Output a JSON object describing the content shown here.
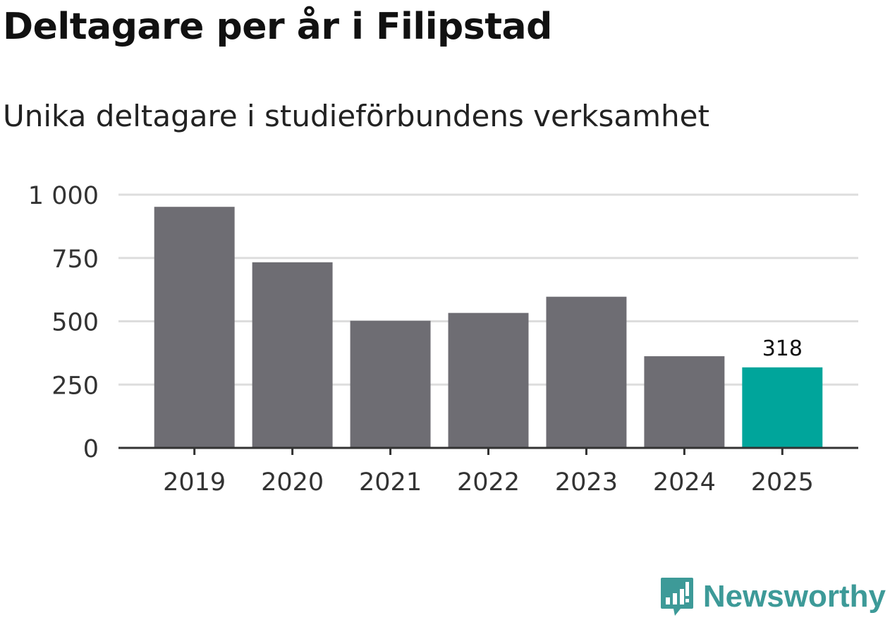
{
  "chart_data": {
    "type": "bar",
    "title": "Deltagare per år i Filipstad",
    "subtitle": "Unika deltagare i studieförbundens verksamhet",
    "categories": [
      "2019",
      "2020",
      "2021",
      "2022",
      "2023",
      "2024",
      "2025"
    ],
    "values": [
      952,
      733,
      502,
      533,
      597,
      362,
      318
    ],
    "ylim": [
      0,
      1000
    ],
    "yticks": [
      0,
      250,
      500,
      750,
      1000
    ],
    "ytick_labels": [
      "0",
      "250",
      "500",
      "750",
      "1 000"
    ],
    "grid": true,
    "highlight_index": 6,
    "data_labels": [
      {
        "index": 6,
        "text": "318"
      }
    ],
    "colors": {
      "bar": "#6e6d73",
      "highlight": "#00a59b",
      "grid": "#dddddd",
      "axis": "#333333",
      "tick_text": "#333333"
    }
  },
  "brand": {
    "name": "Newsworthy",
    "icon": "newsworthy-logo-icon",
    "color": "#3d9a98"
  }
}
